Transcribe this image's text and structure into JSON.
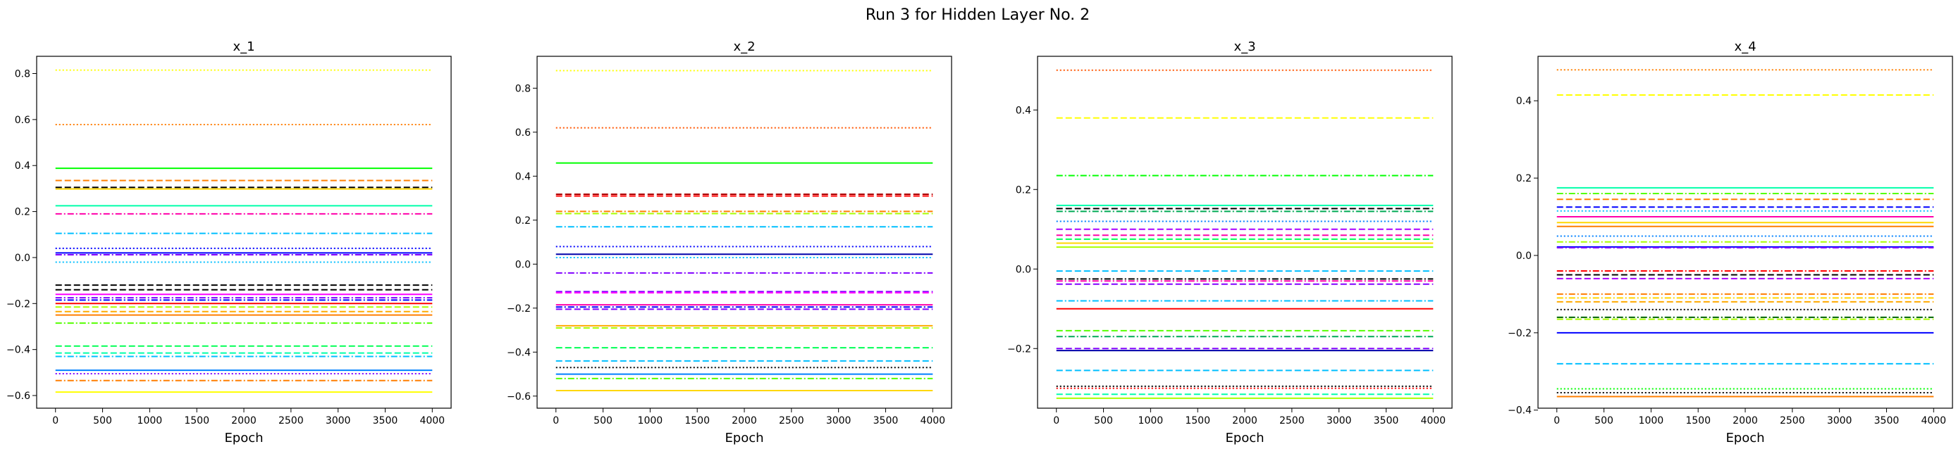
{
  "suptitle": "Run 3 for Hidden Layer No. 2",
  "chart_data": [
    {
      "type": "line",
      "title": "x_1",
      "xlabel": "Epoch",
      "ylabel": "",
      "xlim": [
        -200,
        4200
      ],
      "ylim": [
        -0.655,
        0.875
      ],
      "xticks": [
        0,
        500,
        1000,
        1500,
        2000,
        2500,
        3000,
        3500,
        4000
      ],
      "yticks": [
        -0.6,
        -0.4,
        -0.2,
        0.0,
        0.2,
        0.4,
        0.6,
        0.8
      ],
      "ytick_labels": [
        "−0.6",
        "−0.4",
        "−0.2",
        "0.0",
        "0.2",
        "0.4",
        "0.6",
        "0.8"
      ],
      "x": [
        0,
        4000
      ],
      "series": [
        {
          "color": "#ffff00",
          "style": "dotted",
          "values": [
            0.815,
            0.815
          ]
        },
        {
          "color": "#ff7f00",
          "style": "dotted",
          "values": [
            0.578,
            0.578
          ]
        },
        {
          "color": "#00ff00",
          "style": "solid",
          "values": [
            0.388,
            0.388
          ]
        },
        {
          "color": "#ff7f00",
          "style": "dashed",
          "values": [
            0.335,
            0.335
          ]
        },
        {
          "color": "#000000",
          "style": "dashed",
          "values": [
            0.305,
            0.305
          ]
        },
        {
          "color": "#ffd700",
          "style": "solid",
          "values": [
            0.298,
            0.298
          ]
        },
        {
          "color": "#00ffaa",
          "style": "solid",
          "values": [
            0.225,
            0.225
          ]
        },
        {
          "color": "#ff00aa",
          "style": "dashdot",
          "values": [
            0.19,
            0.19
          ]
        },
        {
          "color": "#00bfff",
          "style": "dashdot",
          "values": [
            0.105,
            0.105
          ]
        },
        {
          "color": "#0000ff",
          "style": "dotted",
          "values": [
            0.04,
            0.04
          ]
        },
        {
          "color": "#0000ff",
          "style": "solid",
          "values": [
            0.02,
            0.02
          ]
        },
        {
          "color": "#8000ff",
          "style": "dashdot",
          "values": [
            0.012,
            0.012
          ]
        },
        {
          "color": "#00bfff",
          "style": "dotted",
          "values": [
            -0.02,
            -0.02
          ]
        },
        {
          "color": "#000000",
          "style": "dashed",
          "values": [
            -0.12,
            -0.12
          ]
        },
        {
          "color": "#000000",
          "style": "dashed",
          "values": [
            -0.14,
            -0.14
          ]
        },
        {
          "color": "#ff00ff",
          "style": "solid",
          "values": [
            -0.16,
            -0.16
          ]
        },
        {
          "color": "#8000ff",
          "style": "dashdot",
          "values": [
            -0.175,
            -0.175
          ]
        },
        {
          "color": "#0000ff",
          "style": "dashdot",
          "values": [
            -0.185,
            -0.185
          ]
        },
        {
          "color": "#ff0000",
          "style": "solid",
          "values": [
            -0.2,
            -0.2
          ]
        },
        {
          "color": "#aaff00",
          "style": "dashed",
          "values": [
            -0.215,
            -0.215
          ]
        },
        {
          "color": "#ffaa00",
          "style": "dashed",
          "values": [
            -0.235,
            -0.235
          ]
        },
        {
          "color": "#ff7f00",
          "style": "solid",
          "values": [
            -0.25,
            -0.25
          ]
        },
        {
          "color": "#55ff00",
          "style": "dashdot",
          "values": [
            -0.285,
            -0.285
          ]
        },
        {
          "color": "#00ff55",
          "style": "dashed",
          "values": [
            -0.385,
            -0.385
          ]
        },
        {
          "color": "#00ffaa",
          "style": "dashed",
          "values": [
            -0.415,
            -0.415
          ]
        },
        {
          "color": "#00bfff",
          "style": "dashdot",
          "values": [
            -0.43,
            -0.43
          ]
        },
        {
          "color": "#0080ff",
          "style": "solid",
          "values": [
            -0.49,
            -0.49
          ]
        },
        {
          "color": "#8000ff",
          "style": "dotted",
          "values": [
            -0.505,
            -0.505
          ]
        },
        {
          "color": "#ff7f00",
          "style": "dashdot",
          "values": [
            -0.535,
            -0.535
          ]
        },
        {
          "color": "#ffff00",
          "style": "solid",
          "values": [
            -0.585,
            -0.585
          ]
        }
      ]
    },
    {
      "type": "line",
      "title": "x_2",
      "xlabel": "Epoch",
      "ylabel": "",
      "xlim": [
        -200,
        4200
      ],
      "ylim": [
        -0.655,
        0.945
      ],
      "xticks": [
        0,
        500,
        1000,
        1500,
        2000,
        2500,
        3000,
        3500,
        4000
      ],
      "yticks": [
        -0.6,
        -0.4,
        -0.2,
        0.0,
        0.2,
        0.4,
        0.6,
        0.8
      ],
      "ytick_labels": [
        "−0.6",
        "−0.4",
        "−0.2",
        "0.0",
        "0.2",
        "0.4",
        "0.6",
        "0.8"
      ],
      "x": [
        0,
        4000
      ],
      "series": [
        {
          "color": "#ffff00",
          "style": "dotted",
          "values": [
            0.88,
            0.88
          ]
        },
        {
          "color": "#ff5500",
          "style": "dotted",
          "values": [
            0.62,
            0.62
          ]
        },
        {
          "color": "#00ff00",
          "style": "solid",
          "values": [
            0.46,
            0.46
          ]
        },
        {
          "color": "#aa0000",
          "style": "dashed",
          "values": [
            0.318,
            0.318
          ]
        },
        {
          "color": "#ff0000",
          "style": "dashed",
          "values": [
            0.31,
            0.31
          ]
        },
        {
          "color": "#ff7f00",
          "style": "dashdot",
          "values": [
            0.24,
            0.24
          ]
        },
        {
          "color": "#aaff00",
          "style": "dashed",
          "values": [
            0.23,
            0.23
          ]
        },
        {
          "color": "#00bfff",
          "style": "dashdot",
          "values": [
            0.17,
            0.17
          ]
        },
        {
          "color": "#0000ff",
          "style": "dotted",
          "values": [
            0.08,
            0.08
          ]
        },
        {
          "color": "#0000aa",
          "style": "solid",
          "values": [
            0.045,
            0.045
          ]
        },
        {
          "color": "#00bfff",
          "style": "dotted",
          "values": [
            0.03,
            0.03
          ]
        },
        {
          "color": "#8000ff",
          "style": "dashdot",
          "values": [
            -0.04,
            -0.04
          ]
        },
        {
          "color": "#8000ff",
          "style": "dashed",
          "values": [
            -0.125,
            -0.125
          ]
        },
        {
          "color": "#ff00ff",
          "style": "dashed",
          "values": [
            -0.13,
            -0.13
          ]
        },
        {
          "color": "#ff00aa",
          "style": "solid",
          "values": [
            -0.185,
            -0.185
          ]
        },
        {
          "color": "#0000ff",
          "style": "dashdot",
          "values": [
            -0.195,
            -0.195
          ]
        },
        {
          "color": "#8000ff",
          "style": "dashed",
          "values": [
            -0.205,
            -0.205
          ]
        },
        {
          "color": "#ffaa00",
          "style": "solid",
          "values": [
            -0.28,
            -0.28
          ]
        },
        {
          "color": "#aaff00",
          "style": "dashed",
          "values": [
            -0.29,
            -0.29
          ]
        },
        {
          "color": "#00ff55",
          "style": "dashed",
          "values": [
            -0.38,
            -0.38
          ]
        },
        {
          "color": "#00bfff",
          "style": "dashed",
          "values": [
            -0.44,
            -0.44
          ]
        },
        {
          "color": "#000000",
          "style": "dotted",
          "values": [
            -0.47,
            -0.47
          ]
        },
        {
          "color": "#0080ff",
          "style": "solid",
          "values": [
            -0.5,
            -0.5
          ]
        },
        {
          "color": "#55ff00",
          "style": "dashdot",
          "values": [
            -0.52,
            -0.52
          ]
        },
        {
          "color": "#ffd700",
          "style": "solid",
          "values": [
            -0.575,
            -0.575
          ]
        }
      ]
    },
    {
      "type": "line",
      "title": "x_3",
      "xlabel": "Epoch",
      "ylabel": "",
      "xlim": [
        -200,
        4200
      ],
      "ylim": [
        -0.35,
        0.535
      ],
      "xticks": [
        0,
        500,
        1000,
        1500,
        2000,
        2500,
        3000,
        3500,
        4000
      ],
      "yticks": [
        -0.2,
        0.0,
        0.2,
        0.4
      ],
      "ytick_labels": [
        "−0.2",
        "0.0",
        "0.2",
        "0.4"
      ],
      "x": [
        0,
        4000
      ],
      "series": [
        {
          "color": "#ff5500",
          "style": "dotted",
          "values": [
            0.5,
            0.5
          ]
        },
        {
          "color": "#ffff00",
          "style": "dashed",
          "values": [
            0.38,
            0.38
          ]
        },
        {
          "color": "#00ff00",
          "style": "dashdot",
          "values": [
            0.235,
            0.235
          ]
        },
        {
          "color": "#00ffaa",
          "style": "solid",
          "values": [
            0.16,
            0.16
          ]
        },
        {
          "color": "#000000",
          "style": "dashed",
          "values": [
            0.152,
            0.152
          ]
        },
        {
          "color": "#00aa55",
          "style": "dashdot",
          "values": [
            0.145,
            0.145
          ]
        },
        {
          "color": "#0080ff",
          "style": "dotted",
          "values": [
            0.12,
            0.12
          ]
        },
        {
          "color": "#aa00ff",
          "style": "dashed",
          "values": [
            0.1,
            0.1
          ]
        },
        {
          "color": "#ff00aa",
          "style": "dashed",
          "values": [
            0.085,
            0.085
          ]
        },
        {
          "color": "#00ff55",
          "style": "dashed",
          "values": [
            0.075,
            0.075
          ]
        },
        {
          "color": "#ffd700",
          "style": "solid",
          "values": [
            0.065,
            0.065
          ]
        },
        {
          "color": "#aaff00",
          "style": "solid",
          "values": [
            0.055,
            0.055
          ]
        },
        {
          "color": "#00bfff",
          "style": "dashed",
          "values": [
            -0.005,
            -0.005
          ]
        },
        {
          "color": "#000000",
          "style": "dashdot",
          "values": [
            -0.025,
            -0.025
          ]
        },
        {
          "color": "#ff00aa",
          "style": "dashdot",
          "values": [
            -0.03,
            -0.03
          ]
        },
        {
          "color": "#8000ff",
          "style": "dashed",
          "values": [
            -0.038,
            -0.038
          ]
        },
        {
          "color": "#00bfff",
          "style": "dashdot",
          "values": [
            -0.08,
            -0.08
          ]
        },
        {
          "color": "#ff0000",
          "style": "solid",
          "values": [
            -0.1,
            -0.1
          ]
        },
        {
          "color": "#55ff00",
          "style": "dashed",
          "values": [
            -0.155,
            -0.155
          ]
        },
        {
          "color": "#00aa55",
          "style": "dashdot",
          "values": [
            -0.17,
            -0.17
          ]
        },
        {
          "color": "#8000ff",
          "style": "dashed",
          "values": [
            -0.2,
            -0.2
          ]
        },
        {
          "color": "#0000aa",
          "style": "solid",
          "values": [
            -0.205,
            -0.205
          ]
        },
        {
          "color": "#00bfff",
          "style": "dashed",
          "values": [
            -0.255,
            -0.255
          ]
        },
        {
          "color": "#000000",
          "style": "dotted",
          "values": [
            -0.295,
            -0.295
          ]
        },
        {
          "color": "#ff0000",
          "style": "dotted",
          "values": [
            -0.3,
            -0.3
          ]
        },
        {
          "color": "#00ffaa",
          "style": "dashed",
          "values": [
            -0.315,
            -0.315
          ]
        },
        {
          "color": "#aaff00",
          "style": "solid",
          "values": [
            -0.325,
            -0.325
          ]
        }
      ]
    },
    {
      "type": "line",
      "title": "x_4",
      "xlabel": "Epoch",
      "ylabel": "",
      "xlim": [
        -200,
        4200
      ],
      "ylim": [
        -0.395,
        0.515
      ],
      "xticks": [
        0,
        500,
        1000,
        1500,
        2000,
        2500,
        3000,
        3500,
        4000
      ],
      "yticks": [
        -0.4,
        -0.2,
        0.0,
        0.2,
        0.4
      ],
      "ytick_labels": [
        "−0.4",
        "−0.2",
        "0.0",
        "0.2",
        "0.4"
      ],
      "x": [
        0,
        4000
      ],
      "series": [
        {
          "color": "#ff7f00",
          "style": "dotted",
          "values": [
            0.48,
            0.48
          ]
        },
        {
          "color": "#ffff00",
          "style": "dashed",
          "values": [
            0.415,
            0.415
          ]
        },
        {
          "color": "#00ffaa",
          "style": "solid",
          "values": [
            0.175,
            0.175
          ]
        },
        {
          "color": "#55ff00",
          "style": "dashdot",
          "values": [
            0.16,
            0.16
          ]
        },
        {
          "color": "#ff7f00",
          "style": "dashed",
          "values": [
            0.145,
            0.145
          ]
        },
        {
          "color": "#0000ff",
          "style": "dashed",
          "values": [
            0.125,
            0.125
          ]
        },
        {
          "color": "#00bfff",
          "style": "dotted",
          "values": [
            0.115,
            0.115
          ]
        },
        {
          "color": "#ff00aa",
          "style": "solid",
          "values": [
            0.1,
            0.1
          ]
        },
        {
          "color": "#ffd700",
          "style": "solid",
          "values": [
            0.085,
            0.085
          ]
        },
        {
          "color": "#ff7f00",
          "style": "solid",
          "values": [
            0.075,
            0.075
          ]
        },
        {
          "color": "#0080ff",
          "style": "dotted",
          "values": [
            0.05,
            0.05
          ]
        },
        {
          "color": "#aaff00",
          "style": "dashdot",
          "values": [
            0.035,
            0.035
          ]
        },
        {
          "color": "#0000ff",
          "style": "solid",
          "values": [
            0.022,
            0.022
          ]
        },
        {
          "color": "#8000ff",
          "style": "dashdot",
          "values": [
            0.02,
            0.02
          ]
        },
        {
          "color": "#ff0000",
          "style": "dashdot",
          "values": [
            -0.04,
            -0.04
          ]
        },
        {
          "color": "#000000",
          "style": "dashed",
          "values": [
            -0.05,
            -0.05
          ]
        },
        {
          "color": "#aa00ff",
          "style": "dashed",
          "values": [
            -0.06,
            -0.06
          ]
        },
        {
          "color": "#ff7f00",
          "style": "dashdot",
          "values": [
            -0.1,
            -0.1
          ]
        },
        {
          "color": "#ffd700",
          "style": "dashdot",
          "values": [
            -0.11,
            -0.11
          ]
        },
        {
          "color": "#ffaa00",
          "style": "dashed",
          "values": [
            -0.12,
            -0.12
          ]
        },
        {
          "color": "#000000",
          "style": "dotted",
          "values": [
            -0.14,
            -0.14
          ]
        },
        {
          "color": "#006600",
          "style": "dashdot",
          "values": [
            -0.16,
            -0.16
          ]
        },
        {
          "color": "#aaff00",
          "style": "dashed",
          "values": [
            -0.165,
            -0.165
          ]
        },
        {
          "color": "#0000ff",
          "style": "solid",
          "values": [
            -0.2,
            -0.2
          ]
        },
        {
          "color": "#00bfff",
          "style": "dashed",
          "values": [
            -0.28,
            -0.28
          ]
        },
        {
          "color": "#00ff00",
          "style": "dotted",
          "values": [
            -0.345,
            -0.345
          ]
        },
        {
          "color": "#000000",
          "style": "dotted",
          "values": [
            -0.355,
            -0.355
          ]
        },
        {
          "color": "#ff7f00",
          "style": "solid",
          "values": [
            -0.365,
            -0.365
          ]
        }
      ]
    }
  ]
}
